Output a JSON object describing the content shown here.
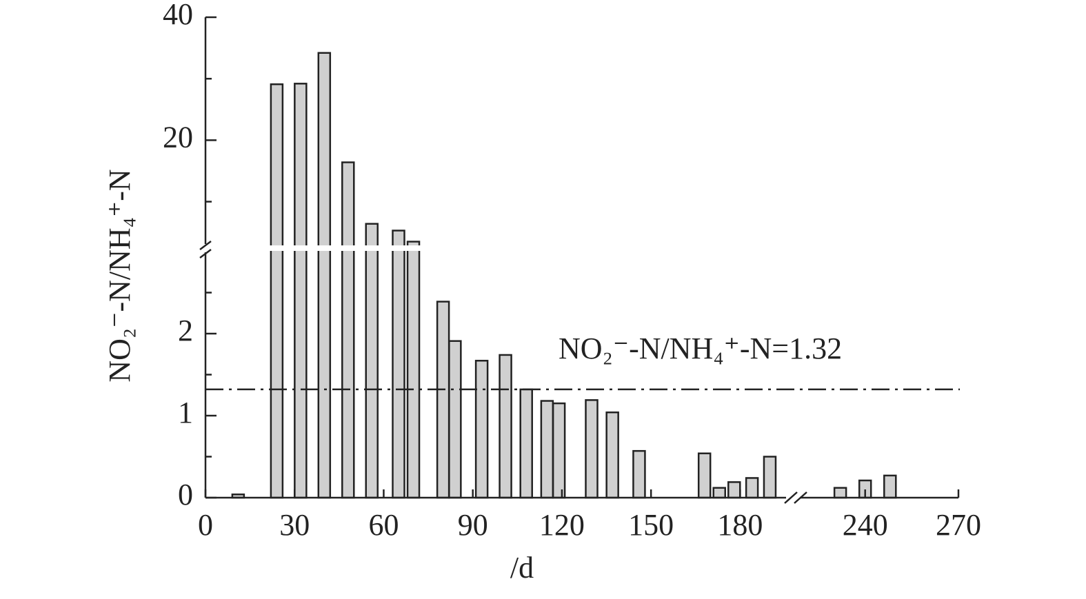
{
  "chart_data": {
    "type": "bar",
    "y_label": "NO₂⁻-N/NH₄⁺-N",
    "x_label": "/d",
    "x": [
      11,
      24,
      32,
      40,
      48,
      56,
      65,
      70,
      80,
      84,
      93,
      101,
      108,
      115,
      119,
      130,
      137,
      146,
      168,
      173,
      178,
      184,
      190,
      232,
      240,
      248
    ],
    "values": [
      0.04,
      29.1,
      29.2,
      34.2,
      16.4,
      6.4,
      5.3,
      3.5,
      2.39,
      1.91,
      1.67,
      1.74,
      1.32,
      1.18,
      1.15,
      1.19,
      1.04,
      0.57,
      0.54,
      0.12,
      0.19,
      0.24,
      0.5,
      0.12,
      0.21,
      0.27
    ],
    "color": "#d0d0d0",
    "x_segments": [
      {
        "xlim": [
          0,
          195
        ],
        "xticks": [
          0,
          30,
          60,
          90,
          120,
          150,
          180
        ]
      },
      {
        "xlim": [
          219,
          270
        ],
        "xticks": [
          240,
          270
        ]
      }
    ],
    "y_segments": [
      {
        "ylim": [
          0,
          3
        ],
        "yticks": [
          0,
          1,
          2
        ],
        "yminor": [
          0.5,
          1.5,
          2.5
        ]
      },
      {
        "ylim": [
          3,
          40
        ],
        "yticks": [
          20,
          40
        ],
        "yminor": [
          10,
          30
        ]
      }
    ],
    "reference_line": {
      "value": 1.32,
      "label": "NO₂⁻-N/NH₄⁺-N=1.32"
    }
  }
}
